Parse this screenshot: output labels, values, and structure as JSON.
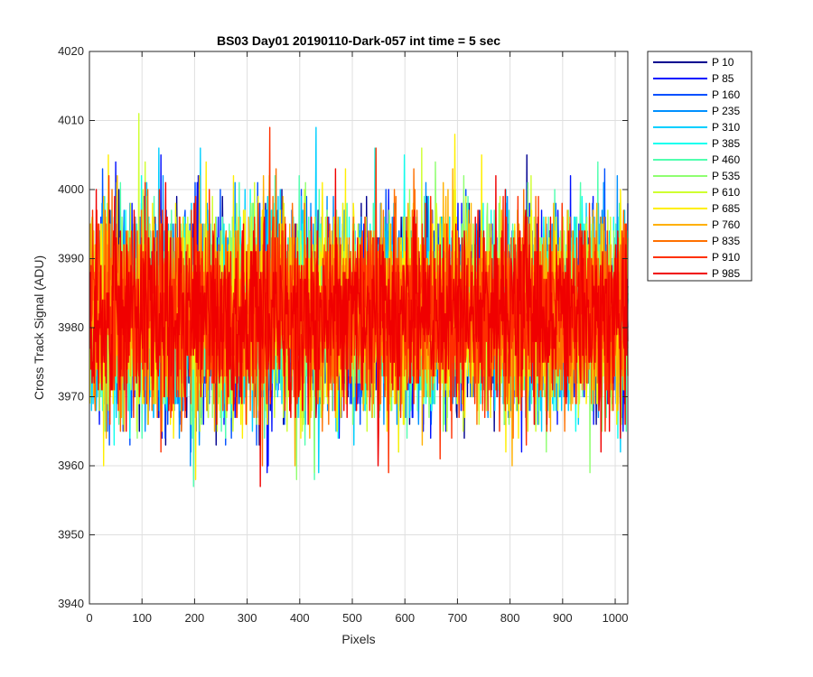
{
  "chart_data": {
    "type": "line",
    "title": "BS03 Day01 20190110-Dark-057 int time = 5 sec",
    "xlabel": "Pixels",
    "ylabel": "Cross Track Signal (ADU)",
    "xlim": [
      0,
      1024
    ],
    "ylim": [
      3940,
      4020
    ],
    "xticks": [
      0,
      100,
      200,
      300,
      400,
      500,
      600,
      700,
      800,
      900,
      1000
    ],
    "yticks": [
      3940,
      3950,
      3960,
      3970,
      3980,
      3990,
      4000,
      4010,
      4020
    ],
    "xtick_labels": [
      "0",
      "100",
      "200",
      "300",
      "400",
      "500",
      "600",
      "700",
      "800",
      "900",
      "1000"
    ],
    "ytick_labels": [
      "3940",
      "3950",
      "3960",
      "3970",
      "3980",
      "3990",
      "4000",
      "4010",
      "4020"
    ],
    "grid": true,
    "legend_position": "outside-top-right",
    "n_points": 1024,
    "mean_level": 3982,
    "noise_sigma": 7,
    "series": [
      {
        "name": "P 10",
        "color": "#00008F"
      },
      {
        "name": "P 85",
        "color": "#0010FF"
      },
      {
        "name": "P 160",
        "color": "#0050FF"
      },
      {
        "name": "P 235",
        "color": "#0090FF"
      },
      {
        "name": "P 310",
        "color": "#00CFFF"
      },
      {
        "name": "P 385",
        "color": "#10FFEF"
      },
      {
        "name": "P 460",
        "color": "#50FFAF"
      },
      {
        "name": "P 535",
        "color": "#8FFF70"
      },
      {
        "name": "P 610",
        "color": "#CFFF30"
      },
      {
        "name": "P 685",
        "color": "#FFEF00"
      },
      {
        "name": "P 760",
        "color": "#FFB000"
      },
      {
        "name": "P 835",
        "color": "#FF7000"
      },
      {
        "name": "P 910",
        "color": "#FF3000"
      },
      {
        "name": "P 985",
        "color": "#F00000"
      }
    ]
  }
}
